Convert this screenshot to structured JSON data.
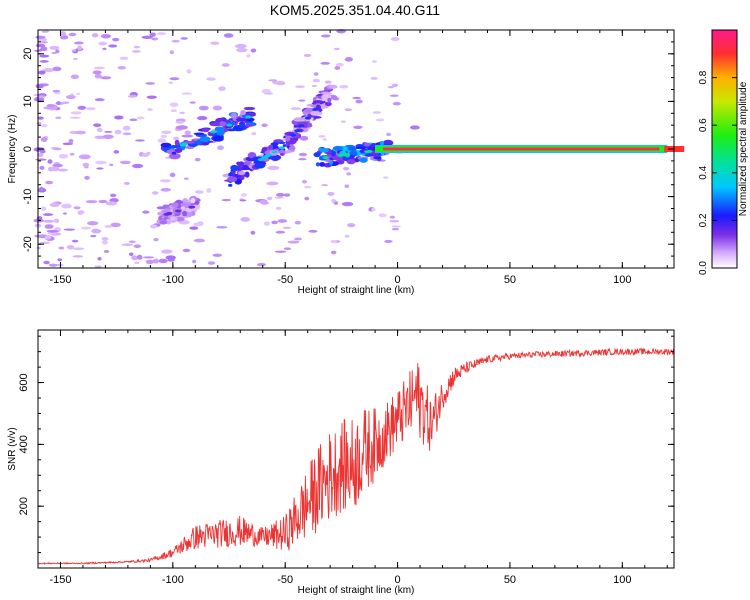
{
  "title": "KOM5.2025.351.04.40.G11",
  "chart_data": [
    {
      "type": "heatmap",
      "panel": "top",
      "xlabel": "Height of straight line (km)",
      "ylabel": "Frequency (Hz)",
      "xlim": [
        -160,
        123
      ],
      "ylim": [
        -25,
        25
      ],
      "xticks": [
        -150,
        -100,
        -50,
        0,
        50,
        100
      ],
      "yticks": [
        -20,
        -10,
        0,
        10,
        20
      ],
      "colorbar": {
        "label": "Normalized spectral amplitude",
        "range": [
          0,
          1
        ],
        "ticks": [
          0.0,
          0.2,
          0.4,
          0.6,
          0.8
        ]
      },
      "features": [
        {
          "name": "upper-rising-trace",
          "x_from": -105,
          "x_to": -65,
          "freq_from": -1,
          "freq_to": 7,
          "amp": 0.25
        },
        {
          "name": "lower-rising-trace",
          "x_from": -75,
          "x_to": -45,
          "freq_from": -6,
          "freq_to": 2,
          "amp": 0.22
        },
        {
          "name": "lower-echo",
          "x_from": -105,
          "x_to": -90,
          "freq_from": -14,
          "freq_to": -12,
          "amp": 0.1
        },
        {
          "name": "upper-cluster",
          "x_from": -48,
          "x_to": -30,
          "freq_from": 2,
          "freq_to": 12,
          "amp": 0.15
        },
        {
          "name": "converging-segment",
          "x_from": -35,
          "x_to": -5,
          "freq_from": -2,
          "freq_to": 0,
          "amp": 0.3
        },
        {
          "name": "steady-line",
          "x_from": -10,
          "x_to": 120,
          "freq_from": 0,
          "freq_to": 0,
          "amp": 0.95
        }
      ]
    },
    {
      "type": "line",
      "panel": "bottom",
      "xlabel": "Height of straight line (km)",
      "ylabel": "SNR (v/v)",
      "xlim": [
        -160,
        123
      ],
      "ylim": [
        0,
        770
      ],
      "xticks": [
        -150,
        -100,
        -50,
        0,
        50,
        100
      ],
      "yticks": [
        200,
        400,
        600
      ],
      "series": [
        {
          "name": "SNR",
          "color": "#ee3333",
          "x": [
            -160,
            -140,
            -120,
            -110,
            -100,
            -90,
            -80,
            -70,
            -60,
            -50,
            -45,
            -40,
            -35,
            -30,
            -25,
            -20,
            -15,
            -10,
            -5,
            0,
            5,
            8,
            10,
            15,
            20,
            25,
            30,
            35,
            40,
            50,
            60,
            80,
            100,
            123
          ],
          "y": [
            15,
            15,
            20,
            25,
            50,
            100,
            110,
            120,
            100,
            110,
            160,
            210,
            260,
            300,
            330,
            330,
            380,
            400,
            440,
            480,
            520,
            560,
            540,
            460,
            560,
            620,
            645,
            660,
            675,
            685,
            690,
            695,
            700,
            700
          ],
          "noise": [
            2,
            2,
            3,
            5,
            15,
            40,
            45,
            50,
            30,
            60,
            90,
            120,
            140,
            150,
            150,
            160,
            140,
            120,
            100,
            100,
            110,
            120,
            130,
            90,
            50,
            30,
            20,
            15,
            12,
            10,
            10,
            10,
            10,
            10
          ]
        }
      ]
    }
  ]
}
